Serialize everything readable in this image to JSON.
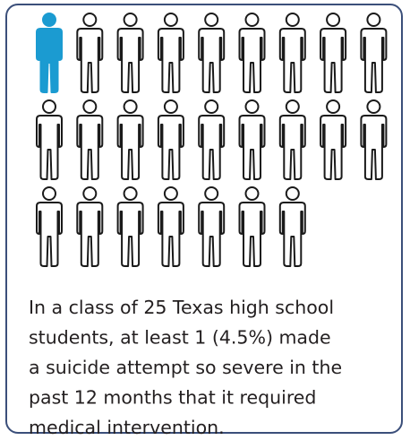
{
  "icons": {
    "total": 25,
    "highlighted": 1,
    "per_row": 9,
    "color": "#1b9bd1",
    "outline": "#1a1a1a"
  },
  "caption_lines": [
    "In a class of 25 Texas high school",
    "students, at least 1 (4.5%) made",
    "a suicide attempt so severe in the",
    "past 12 months that it required",
    "medical intervention."
  ]
}
